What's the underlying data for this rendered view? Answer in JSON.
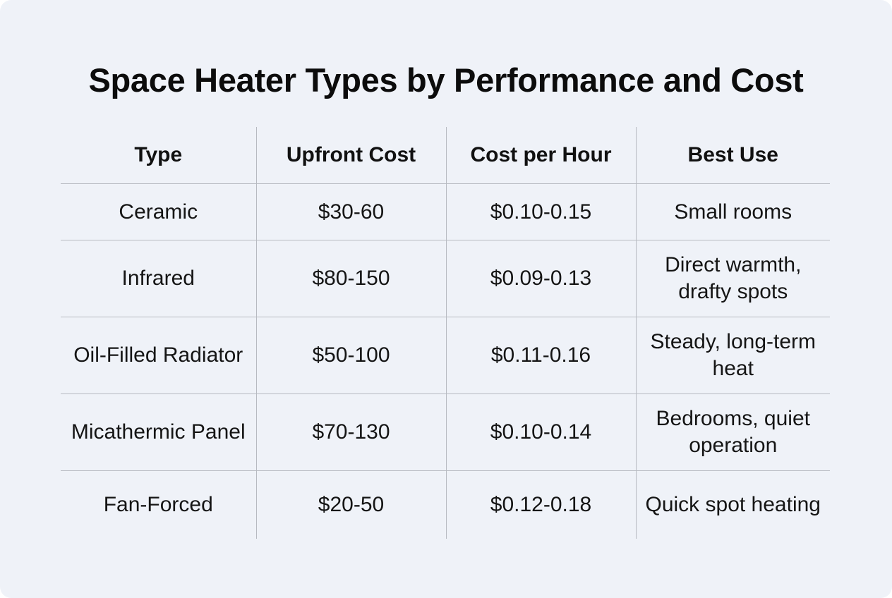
{
  "title": "Space Heater Types by Performance and Cost",
  "table": {
    "headers": [
      "Type",
      "Upfront Cost",
      "Cost per Hour",
      "Best Use"
    ],
    "rows": [
      [
        "Ceramic",
        "$30-60",
        "$0.10-0.15",
        "Small rooms"
      ],
      [
        "Infrared",
        "$80-150",
        "$0.09-0.13",
        "Direct warmth, drafty spots"
      ],
      [
        "Oil-Filled Radiator",
        "$50-100",
        "$0.11-0.16",
        "Steady, long-term heat"
      ],
      [
        "Micathermic Panel",
        "$70-130",
        "$0.10-0.14",
        "Bedrooms, quiet operation"
      ],
      [
        "Fan-Forced",
        "$20-50",
        "$0.12-0.18",
        "Quick spot heating"
      ]
    ]
  },
  "colors": {
    "background": "#eff2f8",
    "divider": "#b7bac1",
    "text": "#111111"
  }
}
